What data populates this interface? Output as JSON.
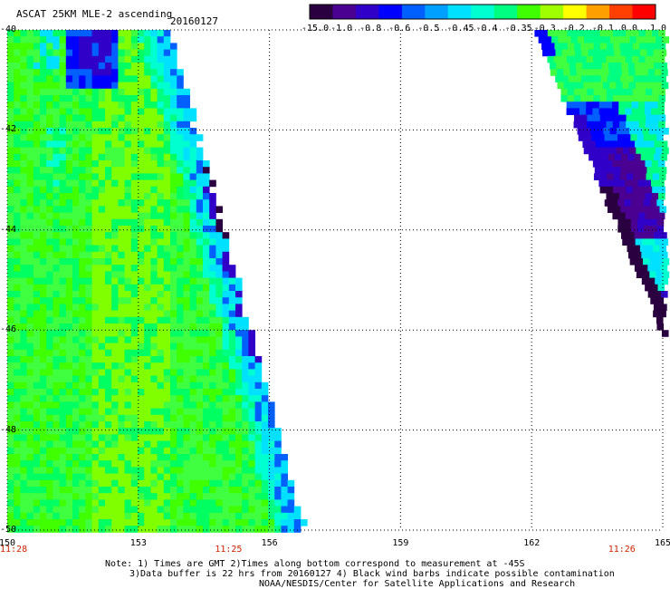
{
  "header": {
    "title": "ASCAT 25KM MLE-2 ascending",
    "date": "20160127"
  },
  "colorbar": {
    "labels": [
      "-15.0",
      "-1.0",
      "-0.8",
      "-0.6",
      "-0.5",
      "-0.45",
      "-0.4",
      "-0.35",
      "-0.3",
      "-0.2",
      "-0.1",
      "0.0",
      "1.0"
    ],
    "colors": [
      "#2a0040",
      "#4a0090",
      "#3000c8",
      "#0000ff",
      "#0060ff",
      "#00a0ff",
      "#00e0ff",
      "#00ffd0",
      "#00ff80",
      "#40ff00",
      "#a0ff00",
      "#ffff00",
      "#ffa000",
      "#ff4000",
      "#ff0000"
    ]
  },
  "axes": {
    "lat_labels": [
      "-40",
      "-42",
      "-44",
      "-46",
      "-48",
      "-50"
    ],
    "lon_labels": [
      "150",
      "153",
      "156",
      "159",
      "162",
      "165"
    ],
    "lat_range": [
      -50,
      -40
    ],
    "lon_range": [
      150,
      165
    ],
    "grid": true,
    "time_labels": [
      {
        "lon": 150,
        "text": "11:28"
      },
      {
        "lon": 155,
        "text": "11:25"
      },
      {
        "lon": 164,
        "text": "11:26"
      }
    ]
  },
  "notes": {
    "line1": "Note: 1) Times are GMT 2)Times along bottom correspond to measurement at -45S",
    "line2": "3)Data buffer is 22 hrs from 20160127 4) Black wind barbs indicate possible contamination",
    "line3": "NOAA/NESDIS/Center for Satellite Applications and Research"
  }
}
